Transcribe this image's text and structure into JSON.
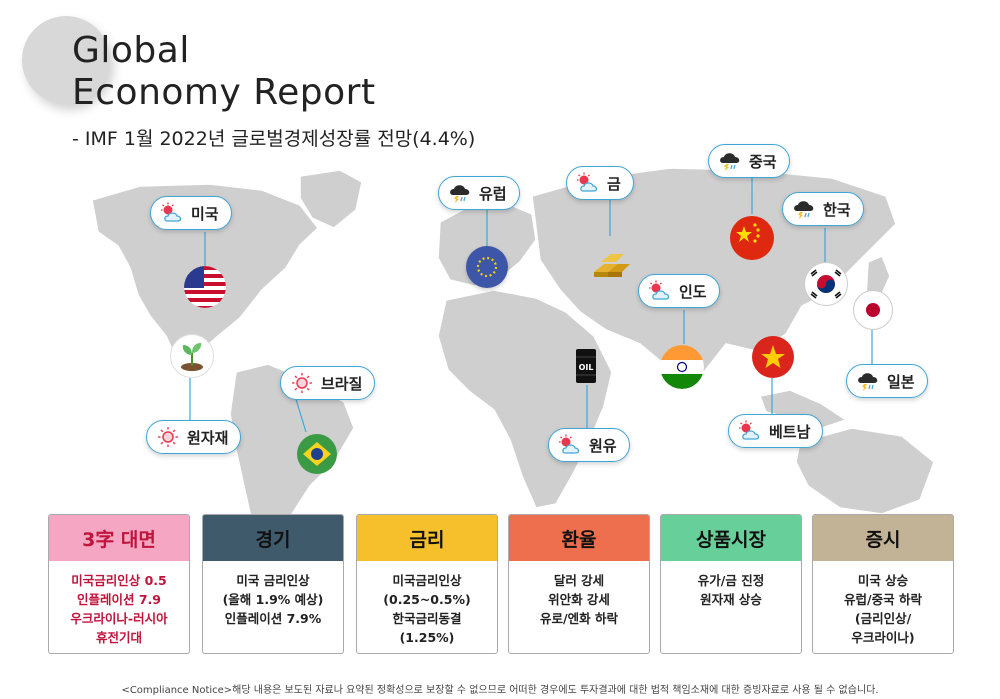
{
  "title": "Global\nEconomy Report",
  "subtitle": "- IMF 1월 2022년 글로벌경제성장률 전망(4.4%)",
  "labels": [
    {
      "name": "미국",
      "weather": "sun-cloud-icon"
    },
    {
      "name": "유럽",
      "weather": "storm-cloud-icon"
    },
    {
      "name": "금",
      "weather": "sun-cloud-icon"
    },
    {
      "name": "중국",
      "weather": "storm-cloud-icon"
    },
    {
      "name": "한국",
      "weather": "storm-cloud-icon"
    },
    {
      "name": "인도",
      "weather": "sun-cloud-icon"
    },
    {
      "name": "브라질",
      "weather": "sun-icon"
    },
    {
      "name": "원자재",
      "weather": "sun-icon"
    },
    {
      "name": "원유",
      "weather": "sun-cloud-icon"
    },
    {
      "name": "베트남",
      "weather": "sun-cloud-icon"
    },
    {
      "name": "일본",
      "weather": "storm-cloud-icon"
    }
  ],
  "markers": {
    "oil_text": "OIL"
  },
  "cards": [
    {
      "title": "3字 대면",
      "color": "#f4a6c2",
      "lines": [
        "미국금리인상 0.5",
        "인플레이션 7.9",
        "우크라이나-러시아",
        "휴전기대"
      ]
    },
    {
      "title": "경기",
      "color": "#3f5a6a",
      "lines": [
        "미국 금리인상",
        "(올해 1.9% 예상)",
        "인플레이션 7.9%"
      ]
    },
    {
      "title": "금리",
      "color": "#f5c02b",
      "lines": [
        "미국금리인상",
        "(0.25~0.5%)",
        "한국금리동결",
        "(1.25%)"
      ]
    },
    {
      "title": "환율",
      "color": "#ee6f4d",
      "lines": [
        "달러 강세",
        "위안화 강세",
        "유로/엔화 하락"
      ]
    },
    {
      "title": "상품시장",
      "color": "#67cf9a",
      "lines": [
        "유가/금 진정",
        "원자재 상승"
      ]
    },
    {
      "title": "증시",
      "color": "#c2b296",
      "lines": [
        "미국 상승",
        "유럽/중국 하락",
        "(금리인상/",
        "우크라이나)"
      ]
    }
  ],
  "footer": "<Compliance Notice>해당 내용은 보도된 자료나 요약된 정확성으로 보장할 수 없으므로 어떠한 경우에도 투자결과에 대한 법적 책임소재에 대한 증빙자료로 사용 될 수 없습니다."
}
